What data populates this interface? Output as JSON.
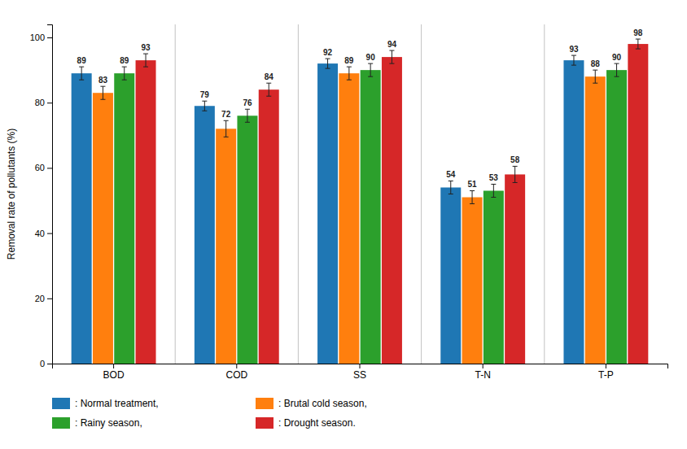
{
  "chart_data": {
    "type": "bar",
    "categories": [
      "BOD",
      "COD",
      "SS",
      "T-N",
      "T-P"
    ],
    "series": [
      {
        "name": ": Normal treatment,",
        "values": [
          89,
          79,
          92,
          54,
          93
        ],
        "errors": [
          2.0,
          1.5,
          1.5,
          2.0,
          1.5
        ]
      },
      {
        "name": ": Brutal cold season,",
        "values": [
          83,
          72,
          89,
          51,
          88
        ],
        "errors": [
          2.0,
          2.5,
          2.0,
          2.0,
          2.0
        ]
      },
      {
        "name": ": Rainy season,",
        "values": [
          89,
          76,
          90,
          53,
          90
        ],
        "errors": [
          2.0,
          2.0,
          2.0,
          2.0,
          2.0
        ]
      },
      {
        "name": ": Drought season.",
        "values": [
          93,
          84,
          94,
          58,
          98
        ],
        "errors": [
          2.0,
          2.0,
          2.0,
          2.5,
          1.5
        ]
      }
    ],
    "ylabel": "Removal rate of pollutants (%)",
    "ylim": [
      0,
      104
    ],
    "yticks": [
      0,
      20,
      40,
      60,
      80,
      100
    ],
    "grid": false,
    "data_labels": true,
    "legend": "bottom"
  }
}
